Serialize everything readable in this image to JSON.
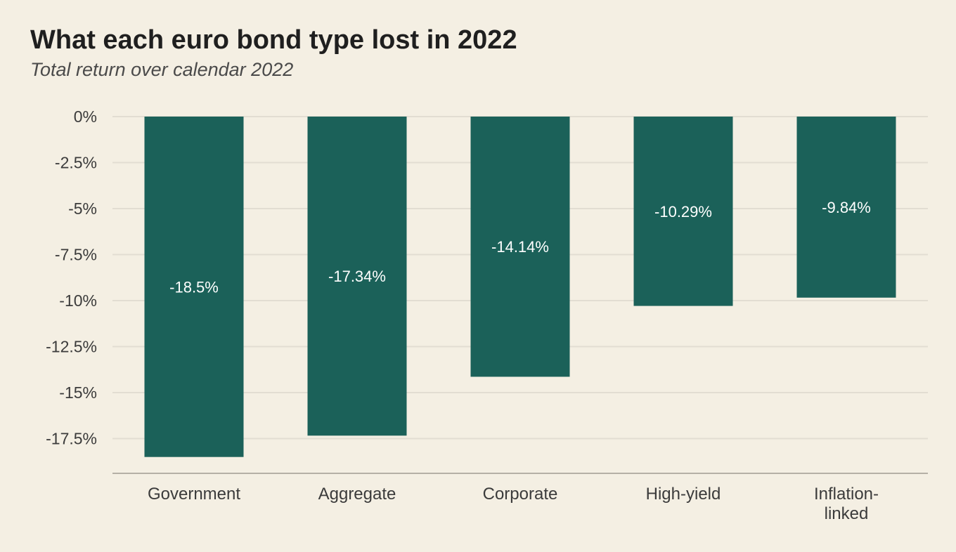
{
  "title": "What each euro bond type lost in 2022",
  "subtitle": "Total return over calendar 2022",
  "chart_data": {
    "type": "bar",
    "categories": [
      "Government",
      "Aggregate",
      "Corporate",
      "High-yield",
      "Inflation-linked"
    ],
    "category_lines": [
      [
        "Government"
      ],
      [
        "Aggregate"
      ],
      [
        "Corporate"
      ],
      [
        "High-yield"
      ],
      [
        "Inflation-",
        "linked"
      ]
    ],
    "values": [
      -18.5,
      -17.34,
      -14.14,
      -10.29,
      -9.84
    ],
    "value_labels": [
      "-18.5%",
      "-17.34%",
      "-14.14%",
      "-10.29%",
      "-9.84%"
    ],
    "yticks": [
      0,
      -2.5,
      -5,
      -7.5,
      -10,
      -12.5,
      -15,
      -17.5
    ],
    "ytick_labels": [
      "0%",
      "-2.5%",
      "-5%",
      "-7.5%",
      "-10%",
      "-12.5%",
      "-15%",
      "-17.5%"
    ],
    "ylim": [
      -19.4,
      0
    ],
    "grid": true,
    "colors": {
      "bar": "#1b6159",
      "grid": "#e2ddd2",
      "axis": "#b5b0a6",
      "background": "#f4efe3"
    }
  }
}
